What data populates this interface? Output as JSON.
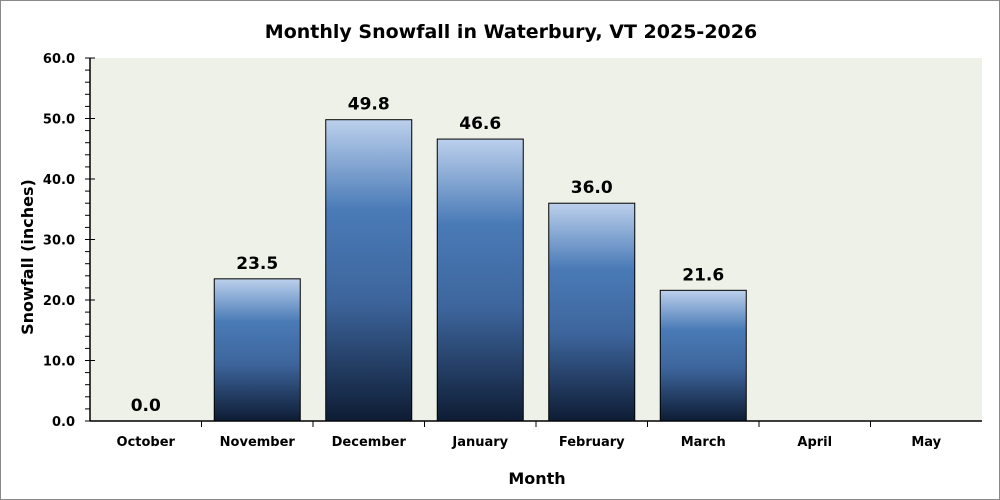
{
  "chart_data": {
    "type": "bar",
    "title": "Monthly Snowfall in Waterbury, VT 2025-2026",
    "xlabel": "Month",
    "ylabel": "Snowfall (inches)",
    "categories": [
      "October",
      "November",
      "December",
      "January",
      "February",
      "March",
      "April",
      "May"
    ],
    "values": [
      0.0,
      23.5,
      49.8,
      46.6,
      36.0,
      21.6,
      null,
      null
    ],
    "data_labels": [
      "0.0",
      "23.5",
      "49.8",
      "46.6",
      "36.0",
      "21.6",
      "",
      ""
    ],
    "ylim": [
      0,
      60
    ],
    "yticks": [
      "0.0",
      "10.0",
      "20.0",
      "30.0",
      "40.0",
      "50.0",
      "60.0"
    ],
    "grid": false,
    "legend": "none",
    "colors": {
      "plot_bg": "#eef1e8",
      "bar_top": "#bcd0ec",
      "bar_mid": "#4a7bb7",
      "bar_bottom": "#0e1c34"
    }
  }
}
